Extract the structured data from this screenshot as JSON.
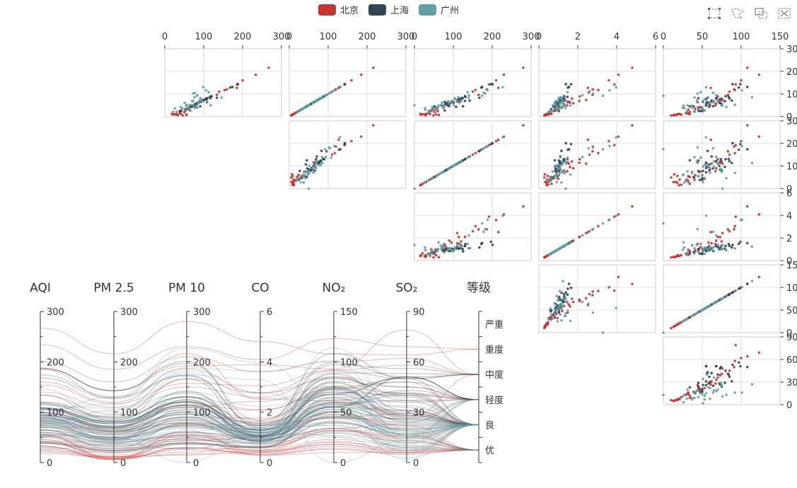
{
  "legend": [
    {
      "name": "北京",
      "color": "#c23531"
    },
    {
      "name": "上海",
      "color": "#2f4554"
    },
    {
      "name": "广州",
      "color": "#61a0a8"
    }
  ],
  "toolbox": [
    {
      "name": "rect-select-icon"
    },
    {
      "name": "lasso-select-icon"
    },
    {
      "name": "keep-select-icon"
    },
    {
      "name": "clear-select-icon"
    }
  ],
  "chart_data": {
    "type": "scatter-matrix-parallel",
    "dimensions": [
      "AQI",
      "PM 2.5",
      "PM 10",
      "CO",
      "NO₂",
      "SO₂",
      "等级"
    ],
    "scatter_axes": [
      {
        "dim": "AQI",
        "ticks": [
          0,
          100,
          200,
          300
        ]
      },
      {
        "dim": "PM 2.5",
        "ticks": [
          0,
          100,
          200,
          300
        ]
      },
      {
        "dim": "PM 10",
        "ticks": [
          0,
          100,
          200,
          300
        ]
      },
      {
        "dim": "CO",
        "ticks": [
          0,
          2,
          4,
          6
        ]
      },
      {
        "dim": "NO₂",
        "ticks": [
          0,
          50,
          100,
          150
        ]
      },
      {
        "dim": "SO₂",
        "ticks": [
          0,
          30,
          60,
          90
        ]
      }
    ],
    "parallel_axes": [
      {
        "name": "AQI",
        "min": 0,
        "max": 300,
        "ticks": [
          0,
          100,
          200,
          300
        ]
      },
      {
        "name": "PM 2.5",
        "min": 0,
        "max": 300,
        "ticks": [
          0,
          100,
          200,
          300
        ]
      },
      {
        "name": "PM 10",
        "min": 0,
        "max": 300,
        "ticks": [
          0,
          100,
          200,
          300
        ]
      },
      {
        "name": "CO",
        "min": 0,
        "max": 6,
        "ticks": [
          0,
          2,
          4,
          6
        ]
      },
      {
        "name": "NO₂",
        "min": 0,
        "max": 150,
        "ticks": [
          0,
          50,
          100,
          150
        ]
      },
      {
        "name": "SO₂",
        "min": 0,
        "max": 90,
        "ticks": [
          0,
          30,
          60,
          90
        ]
      },
      {
        "name": "等级",
        "type": "category",
        "categories": [
          "优",
          "良",
          "轻度",
          "中度",
          "重度",
          "严重"
        ]
      }
    ],
    "series": [
      {
        "name": "北京",
        "color": "#c23531",
        "data": [
          [
            55,
            9,
            56,
            0.46,
            18,
            6,
            1
          ],
          [
            25,
            11,
            21,
            0.65,
            34,
            9,
            0
          ],
          [
            56,
            7,
            63,
            0.3,
            14,
            5,
            1
          ],
          [
            33,
            7,
            29,
            0.33,
            16,
            6,
            0
          ],
          [
            42,
            24,
            44,
            0.76,
            40,
            16,
            0
          ],
          [
            82,
            58,
            90,
            1.77,
            68,
            33,
            1
          ],
          [
            74,
            49,
            77,
            1.46,
            67,
            28,
            1
          ],
          [
            78,
            55,
            80,
            1.29,
            59,
            29,
            1
          ],
          [
            267,
            216,
            280,
            4.8,
            108,
            64,
            4
          ],
          [
            185,
            127,
            216,
            2.52,
            61,
            27,
            3
          ],
          [
            39,
            19,
            38,
            0.57,
            31,
            15,
            0
          ],
          [
            41,
            11,
            40,
            0.43,
            21,
            7,
            0
          ],
          [
            64,
            38,
            74,
            1.04,
            46,
            22,
            1
          ],
          [
            108,
            79,
            120,
            1.7,
            75,
            41,
            2
          ],
          [
            108,
            63,
            116,
            1.48,
            44,
            26,
            2
          ],
          [
            33,
            6,
            29,
            0.34,
            13,
            5,
            0
          ],
          [
            94,
            66,
            110,
            1.54,
            62,
            31,
            1
          ],
          [
            186,
            142,
            192,
            3.88,
            93,
            79,
            3
          ],
          [
            57,
            31,
            54,
            0.96,
            32,
            14,
            1
          ],
          [
            22,
            8,
            17,
            0.48,
            23,
            10,
            0
          ],
          [
            39,
            15,
            36,
            0.61,
            29,
            13,
            0
          ],
          [
            94,
            69,
            114,
            2.08,
            73,
            39,
            1
          ],
          [
            99,
            73,
            110,
            2.43,
            76,
            48,
            1
          ],
          [
            31,
            12,
            30,
            0.5,
            32,
            16,
            0
          ],
          [
            42,
            27,
            43,
            1,
            53,
            22,
            0
          ],
          [
            154,
            117,
            157,
            3.05,
            92,
            58,
            3
          ],
          [
            234,
            185,
            230,
            4.09,
            123,
            69,
            4
          ],
          [
            160,
            120,
            186,
            2.77,
            91,
            50,
            3
          ],
          [
            134,
            96,
            165,
            2.76,
            83,
            41,
            2
          ],
          [
            52,
            24,
            60,
            1.03,
            50,
            21,
            1
          ],
          [
            46,
            5,
            49,
            0.28,
            10,
            6,
            0
          ],
          [
            18,
            12,
            15,
            0.4,
            20,
            8,
            0
          ],
          [
            60,
            35,
            59,
            0.9,
            41,
            15,
            1
          ],
          [
            50,
            20,
            52,
            0.6,
            34,
            12,
            0
          ],
          [
            88,
            62,
            95,
            1.6,
            58,
            28,
            1
          ],
          [
            120,
            89,
            130,
            2.1,
            70,
            36,
            2
          ],
          [
            140,
            110,
            150,
            2.6,
            85,
            45,
            2
          ],
          [
            200,
            160,
            210,
            3.6,
            100,
            62,
            3
          ],
          [
            70,
            42,
            75,
            1.2,
            48,
            20,
            1
          ],
          [
            28,
            9,
            26,
            0.4,
            18,
            7,
            0
          ]
        ]
      },
      {
        "name": "上海",
        "color": "#2f4554",
        "data": [
          [
            91,
            45,
            125,
            0.82,
            34,
            23,
            1
          ],
          [
            65,
            27,
            78,
            0.86,
            45,
            29,
            1
          ],
          [
            83,
            60,
            84,
            1.09,
            73,
            27,
            1
          ],
          [
            109,
            81,
            121,
            1.28,
            68,
            51,
            2
          ],
          [
            106,
            77,
            114,
            1.07,
            55,
            51,
            2
          ],
          [
            109,
            81,
            121,
            1.28,
            68,
            51,
            2
          ],
          [
            106,
            77,
            114,
            1.07,
            55,
            51,
            2
          ],
          [
            89,
            65,
            78,
            0.86,
            51,
            26,
            1
          ],
          [
            53,
            33,
            47,
            0.64,
            50,
            17,
            1
          ],
          [
            80,
            55,
            80,
            1.01,
            75,
            24,
            1
          ],
          [
            117,
            81,
            124,
            1.03,
            45,
            24,
            2
          ],
          [
            99,
            71,
            142,
            1.1,
            62,
            42,
            1
          ],
          [
            95,
            69,
            130,
            1.28,
            74,
            50,
            1
          ],
          [
            116,
            87,
            131,
            1.47,
            84,
            40,
            2
          ],
          [
            108,
            80,
            121,
            1.3,
            85,
            37,
            2
          ],
          [
            134,
            83,
            167,
            1.16,
            57,
            43,
            2
          ],
          [
            79,
            43,
            107,
            1.05,
            59,
            37,
            1
          ],
          [
            71,
            46,
            89,
            0.86,
            64,
            25,
            1
          ],
          [
            97,
            71,
            113,
            1.17,
            88,
            31,
            1
          ],
          [
            84,
            57,
            91,
            0.85,
            55,
            31,
            1
          ],
          [
            87,
            63,
            101,
            0.9,
            56,
            41,
            1
          ],
          [
            104,
            77,
            119,
            1.09,
            73,
            48,
            2
          ],
          [
            87,
            62,
            100,
            1,
            72,
            28,
            1
          ],
          [
            168,
            128,
            172,
            1.49,
            97,
            56,
            3
          ],
          [
            65,
            45,
            51,
            0.74,
            39,
            17,
            1
          ],
          [
            39,
            24,
            38,
            0.61,
            47,
            17,
            0
          ],
          [
            39,
            24,
            39,
            0.59,
            50,
            19,
            0
          ],
          [
            93,
            68,
            96,
            1.05,
            79,
            29,
            1
          ],
          [
            188,
            143,
            197,
            1.66,
            99,
            51,
            3
          ],
          [
            174,
            131,
            174,
            1.55,
            108,
            50,
            3
          ],
          [
            187,
            143,
            201,
            1.39,
            89,
            53,
            3
          ],
          [
            60,
            40,
            55,
            0.8,
            45,
            20,
            1
          ],
          [
            75,
            50,
            85,
            0.95,
            60,
            30,
            1
          ],
          [
            120,
            90,
            130,
            1.3,
            80,
            45,
            2
          ],
          [
            70,
            48,
            72,
            0.9,
            55,
            26,
            1
          ],
          [
            100,
            72,
            110,
            1.2,
            70,
            40,
            1
          ]
        ]
      },
      {
        "name": "广州",
        "color": "#61a0a8",
        "data": [
          [
            26,
            37,
            27,
            1.163,
            27,
            13,
            0
          ],
          [
            85,
            62,
            71,
            1.195,
            60,
            8,
            1
          ],
          [
            78,
            38,
            74,
            1.363,
            37,
            7,
            1
          ],
          [
            21,
            21,
            36,
            0.634,
            40,
            9,
            0
          ],
          [
            41,
            42,
            46,
            0.915,
            81,
            13,
            0
          ],
          [
            56,
            52,
            69,
            1.067,
            92,
            16,
            1
          ],
          [
            64,
            30,
            28,
            0.924,
            51,
            2,
            1
          ],
          [
            55,
            48,
            74,
            1.236,
            75,
            26,
            1
          ],
          [
            76,
            85,
            113,
            1.237,
            114,
            27,
            1
          ],
          [
            91,
            81,
            104,
            1.041,
            56,
            40,
            1
          ],
          [
            84,
            39,
            60,
            0.964,
            25,
            11,
            1
          ],
          [
            64,
            51,
            101,
            0.862,
            58,
            23,
            1
          ],
          [
            70,
            69,
            120,
            1.198,
            65,
            36,
            1
          ],
          [
            77,
            105,
            178,
            2.549,
            64,
            16,
            1
          ],
          [
            109,
            68,
            87,
            0.996,
            74,
            29,
            2
          ],
          [
            73,
            68,
            97,
            0.905,
            51,
            34,
            1
          ],
          [
            54,
            27,
            47,
            0.592,
            53,
            12,
            1
          ],
          [
            51,
            61,
            97,
            0.811,
            65,
            19,
            1
          ],
          [
            91,
            71,
            121,
            1.374,
            43,
            18,
            1
          ],
          [
            73,
            102,
            182,
            2.787,
            44,
            19,
            1
          ],
          [
            73,
            50,
            76,
            0.717,
            31,
            20,
            1
          ],
          [
            84,
            94,
            140,
            2.238,
            68,
            18,
            1
          ],
          [
            93,
            77,
            104,
            1.165,
            53,
            7,
            1
          ],
          [
            99,
            130,
            227,
            3.97,
            55,
            15,
            1
          ],
          [
            146,
            84,
            139,
            1.094,
            40,
            17,
            2
          ],
          [
            113,
            108,
            137,
            1.481,
            48,
            15,
            2
          ],
          [
            81,
            48,
            62,
            1.619,
            26,
            3,
            1
          ],
          [
            56,
            48,
            68,
            1.336,
            37,
            9,
            1
          ],
          [
            82,
            92,
            174,
            3.29,
            0,
            13,
            1
          ],
          [
            106,
            116,
            188,
            3.628,
            101,
            16,
            2
          ],
          [
            118,
            50,
            0,
            1.383,
            76,
            11,
            2
          ],
          [
            30,
            22,
            40,
            0.5,
            30,
            8,
            0
          ],
          [
            60,
            40,
            60,
            1.0,
            50,
            14,
            1
          ],
          [
            95,
            70,
            110,
            1.4,
            70,
            20,
            1
          ],
          [
            45,
            35,
            55,
            0.8,
            45,
            10,
            0
          ],
          [
            88,
            60,
            90,
            1.1,
            60,
            22,
            1
          ]
        ]
      }
    ]
  }
}
